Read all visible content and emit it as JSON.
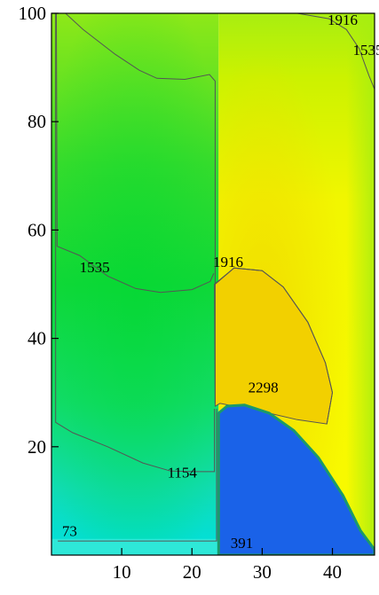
{
  "chart_data": {
    "type": "heatmap",
    "subtype": "filled-contour",
    "title": "",
    "xlabel": "",
    "ylabel": "",
    "xlim": [
      0,
      46
    ],
    "ylim": [
      0,
      100
    ],
    "xticks": [
      10,
      20,
      30,
      40
    ],
    "yticks": [
      20,
      40,
      60,
      80,
      100
    ],
    "grid": false,
    "colormap": [
      "#1f5fe6",
      "#00d8d8",
      "#00e070",
      "#7ee818",
      "#c8f000",
      "#f4f400",
      "#f0d000"
    ],
    "contour_labels": [
      {
        "text": "73",
        "x": 1.5,
        "y": 3.5
      },
      {
        "text": "391",
        "x": 25.5,
        "y": 1.3
      },
      {
        "text": "1154",
        "x": 16.5,
        "y": 14.3
      },
      {
        "text": "1535",
        "x": 4.0,
        "y": 52.2
      },
      {
        "text": "1916",
        "x": 23.0,
        "y": 53.2
      },
      {
        "text": "2298",
        "x": 28.0,
        "y": 30.0
      },
      {
        "text": "1916",
        "x": 39.3,
        "y": 97.9
      },
      {
        "text": "1535",
        "x": 42.9,
        "y": 92.3
      }
    ],
    "regions": {
      "blue_region": {
        "x_range": [
          23.8,
          46
        ],
        "y_top": 27.5
      }
    }
  }
}
